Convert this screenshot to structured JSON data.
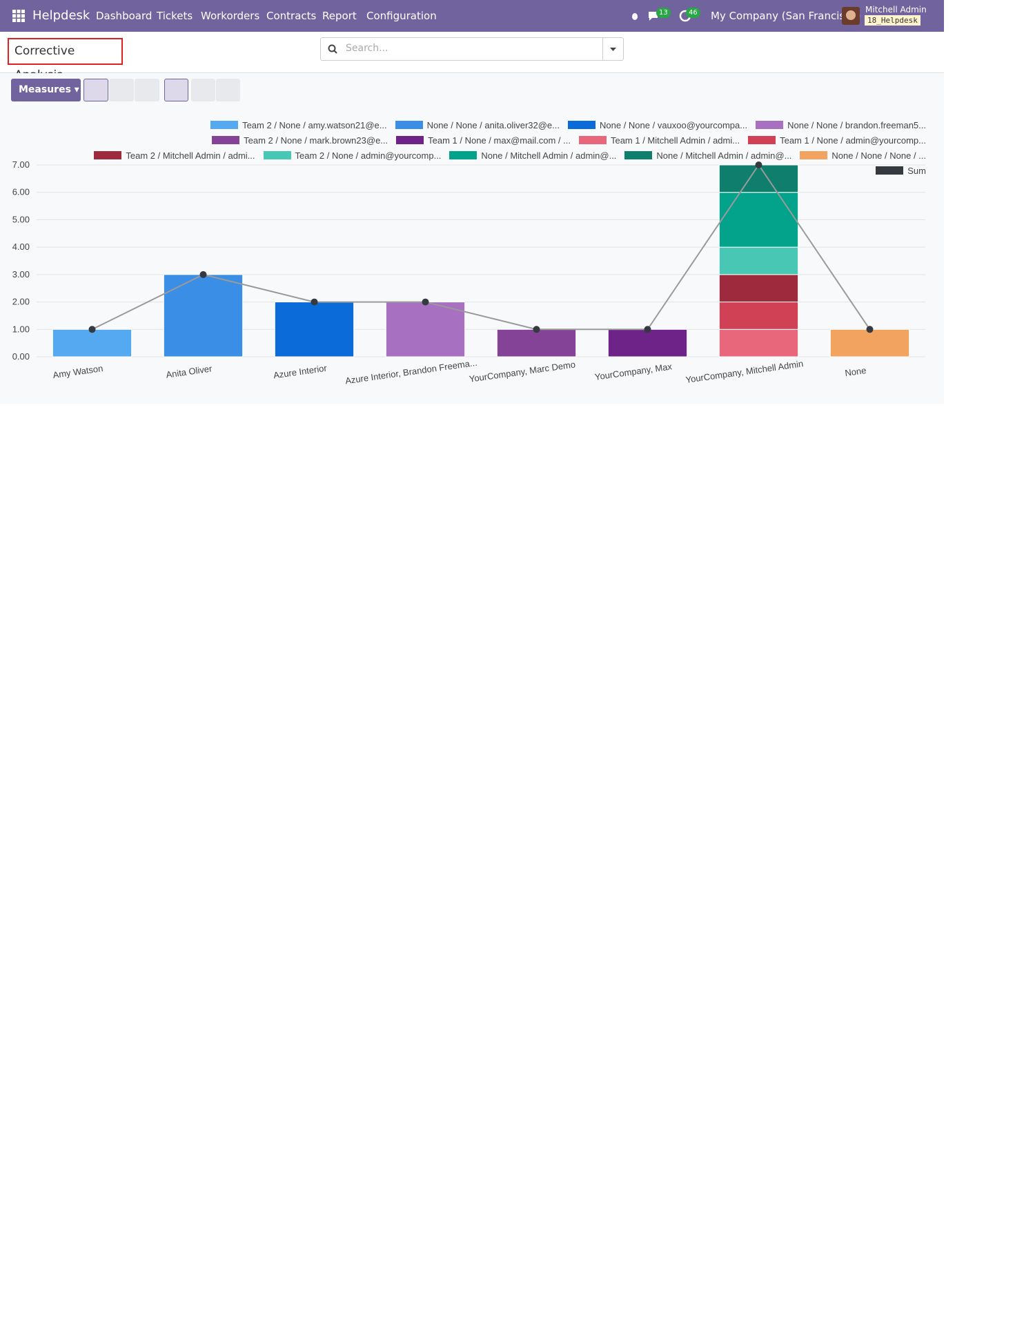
{
  "navbar": {
    "app": "Helpdesk",
    "menu": [
      "Dashboard",
      "Tickets",
      "Workorders",
      "Contracts",
      "Report",
      "Configuration"
    ],
    "messages_badge": "13",
    "activities_badge": "46",
    "company": "My Company (San Francisco)",
    "user": "Mitchell Admin",
    "database": "18_Helpdesk"
  },
  "control_panel": {
    "title": "Corrective Analysis",
    "search_placeholder": "Search...",
    "measures": "Measures"
  },
  "chart_data": {
    "type": "bar",
    "stacked": true,
    "categories": [
      "Amy Watson",
      "Anita Oliver",
      "Azure Interior",
      "Azure Interior, Brandon Freema...",
      "YourCompany, Marc Demo",
      "YourCompany, Max",
      "YourCompany, Mitchell Admin",
      "None"
    ],
    "series": [
      {
        "name": "Team 2 / None / amy.watson21@e...",
        "color": "#55a9f0",
        "values": [
          1,
          null,
          null,
          null,
          null,
          null,
          null,
          null
        ]
      },
      {
        "name": "None / None / anita.oliver32@e...",
        "color": "#3a8ee6",
        "values": [
          null,
          3,
          null,
          null,
          null,
          null,
          null,
          null
        ]
      },
      {
        "name": "None / None / vauxoo@yourcompa...",
        "color": "#0b6bd8",
        "values": [
          null,
          null,
          2,
          null,
          null,
          null,
          null,
          null
        ]
      },
      {
        "name": "None / None / brandon.freeman5...",
        "color": "#a870c0",
        "values": [
          null,
          null,
          null,
          2,
          null,
          null,
          null,
          null
        ]
      },
      {
        "name": "Team 2 / None / mark.brown23@e...",
        "color": "#844396",
        "values": [
          null,
          null,
          null,
          null,
          1,
          null,
          null,
          null
        ]
      },
      {
        "name": "Team 1 / None / max@mail.com / ...",
        "color": "#6d2387",
        "values": [
          null,
          null,
          null,
          null,
          null,
          1,
          null,
          null
        ]
      },
      {
        "name": "Team 1 / Mitchell Admin / admi...",
        "color": "#e9677b",
        "values": [
          null,
          null,
          null,
          null,
          null,
          null,
          1,
          null
        ]
      },
      {
        "name": "Team 1 / None / admin@yourcomp...",
        "color": "#d04156",
        "values": [
          null,
          null,
          null,
          null,
          null,
          null,
          1,
          null
        ]
      },
      {
        "name": "Team 2 / Mitchell Admin / admi...",
        "color": "#9e2a3d",
        "values": [
          null,
          null,
          null,
          null,
          null,
          null,
          1,
          null
        ]
      },
      {
        "name": "Team 2 / None / admin@yourcomp...",
        "color": "#48c7b4",
        "values": [
          null,
          null,
          null,
          null,
          null,
          null,
          1,
          null
        ]
      },
      {
        "name": "None / Mitchell Admin / admin@...",
        "color": "#03a38b",
        "values": [
          null,
          null,
          null,
          null,
          null,
          null,
          2,
          null
        ]
      },
      {
        "name": "None / Mitchell Admin / admin@...",
        "color": "#107e6d",
        "values": [
          null,
          null,
          null,
          null,
          null,
          null,
          1,
          null
        ]
      },
      {
        "name": "None / None / None / ...",
        "color": "#f2a35f",
        "values": [
          null,
          null,
          null,
          null,
          null,
          null,
          null,
          1
        ]
      },
      {
        "name": "Sum",
        "color": "#343a40",
        "type": "line",
        "values": [
          1,
          3,
          2,
          2,
          1,
          1,
          7,
          1
        ]
      }
    ],
    "ylim": [
      0,
      7
    ],
    "yticks": [
      {
        "value": 0,
        "label": "0.00"
      },
      {
        "value": 1,
        "label": "1.00"
      },
      {
        "value": 2,
        "label": "2.00"
      },
      {
        "value": 3,
        "label": "3.00"
      },
      {
        "value": 4,
        "label": "4.00"
      },
      {
        "value": 5,
        "label": "5.00"
      },
      {
        "value": 6,
        "label": "6.00"
      },
      {
        "value": 7,
        "label": "7.00"
      }
    ],
    "grid": true,
    "legend": "top-right"
  }
}
